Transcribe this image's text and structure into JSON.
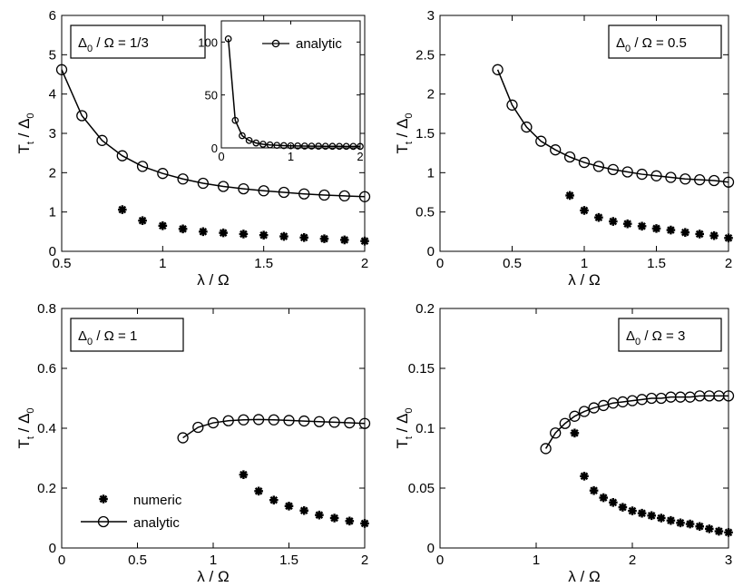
{
  "figure": {
    "xlabel": "λ / Ω",
    "ylabel_main": "T",
    "ylabel_sub_t": "t",
    "ylabel_mid": " / Δ",
    "ylabel_sub_0": "0"
  },
  "colors": {
    "line": "#000000",
    "background": "#ffffff"
  },
  "chart_data": [
    {
      "type": "line",
      "panel": "top-left",
      "label": {
        "delta": "Δ",
        "sub": "0",
        "rest": " / Ω = 1/3"
      },
      "xlim": [
        0.5,
        2
      ],
      "ylim": [
        0,
        6
      ],
      "xticks": [
        0.5,
        1,
        1.5,
        2
      ],
      "xtick_labels": [
        "0.5",
        "1",
        "1.5",
        "2"
      ],
      "yticks": [
        0,
        1,
        2,
        3,
        4,
        5,
        6
      ],
      "ytick_labels": [
        "0",
        "1",
        "2",
        "3",
        "4",
        "5",
        "6"
      ],
      "series": [
        {
          "name": "analytic",
          "marker": "circle",
          "line": true,
          "x": [
            0.5,
            0.6,
            0.7,
            0.8,
            0.9,
            1.0,
            1.1,
            1.2,
            1.3,
            1.4,
            1.5,
            1.6,
            1.7,
            1.8,
            1.9,
            2.0
          ],
          "y": [
            4.62,
            3.45,
            2.82,
            2.43,
            2.16,
            1.98,
            1.84,
            1.73,
            1.65,
            1.59,
            1.54,
            1.5,
            1.46,
            1.43,
            1.41,
            1.39
          ]
        },
        {
          "name": "numeric",
          "marker": "star",
          "line": false,
          "x": [
            0.8,
            0.9,
            1.0,
            1.1,
            1.2,
            1.3,
            1.4,
            1.5,
            1.6,
            1.7,
            1.8,
            1.9,
            2.0
          ],
          "y": [
            1.06,
            0.78,
            0.65,
            0.57,
            0.5,
            0.47,
            0.44,
            0.41,
            0.38,
            0.35,
            0.32,
            0.29,
            0.26
          ]
        }
      ],
      "inset": {
        "xlim": [
          0,
          2
        ],
        "ylim": [
          0,
          120
        ],
        "xticks": [
          0,
          1,
          2
        ],
        "xtick_labels": [
          "0",
          "1",
          "2"
        ],
        "yticks": [
          0,
          50,
          100
        ],
        "ytick_labels": [
          "0",
          "50",
          "100"
        ],
        "legend": "analytic",
        "series": [
          {
            "name": "analytic",
            "marker": "circle",
            "line": true,
            "x": [
              0.1,
              0.2,
              0.3,
              0.4,
              0.5,
              0.6,
              0.7,
              0.8,
              0.9,
              1.0,
              1.1,
              1.2,
              1.3,
              1.4,
              1.5,
              1.6,
              1.7,
              1.8,
              1.9,
              2.0
            ],
            "y": [
              103,
              26,
              11.5,
              7,
              4.62,
              3.45,
              2.82,
              2.43,
              2.16,
              1.98,
              1.84,
              1.73,
              1.65,
              1.59,
              1.54,
              1.5,
              1.46,
              1.43,
              1.41,
              1.39
            ]
          }
        ]
      }
    },
    {
      "type": "line",
      "panel": "top-right",
      "label": {
        "delta": "Δ",
        "sub": "0",
        "rest": " / Ω = 0.5"
      },
      "xlim": [
        0,
        2
      ],
      "ylim": [
        0,
        3
      ],
      "xticks": [
        0,
        0.5,
        1,
        1.5,
        2
      ],
      "xtick_labels": [
        "0",
        "0.5",
        "1",
        "1.5",
        "2"
      ],
      "yticks": [
        0,
        0.5,
        1,
        1.5,
        2,
        2.5,
        3
      ],
      "ytick_labels": [
        "0",
        "0.5",
        "1",
        "1.5",
        "2",
        "2.5",
        "3"
      ],
      "series": [
        {
          "name": "analytic",
          "marker": "circle",
          "line": true,
          "x": [
            0.4,
            0.5,
            0.6,
            0.7,
            0.8,
            0.9,
            1.0,
            1.1,
            1.2,
            1.3,
            1.4,
            1.5,
            1.6,
            1.7,
            1.8,
            1.9,
            2.0
          ],
          "y": [
            2.31,
            1.86,
            1.58,
            1.4,
            1.29,
            1.2,
            1.13,
            1.08,
            1.04,
            1.01,
            0.98,
            0.96,
            0.94,
            0.92,
            0.91,
            0.9,
            0.88
          ]
        },
        {
          "name": "numeric",
          "marker": "star",
          "line": false,
          "x": [
            0.9,
            1.0,
            1.1,
            1.2,
            1.3,
            1.4,
            1.5,
            1.6,
            1.7,
            1.8,
            1.9,
            2.0
          ],
          "y": [
            0.71,
            0.52,
            0.43,
            0.38,
            0.35,
            0.32,
            0.29,
            0.27,
            0.24,
            0.22,
            0.2,
            0.17
          ]
        }
      ]
    },
    {
      "type": "line",
      "panel": "bottom-left",
      "label": {
        "delta": "Δ",
        "sub": "0",
        "rest": " / Ω = 1"
      },
      "xlim": [
        0,
        2
      ],
      "ylim": [
        0,
        0.8
      ],
      "xticks": [
        0,
        0.5,
        1,
        1.5,
        2
      ],
      "xtick_labels": [
        "0",
        "0.5",
        "1",
        "1.5",
        "2"
      ],
      "yticks": [
        0,
        0.2,
        0.4,
        0.6,
        0.8
      ],
      "ytick_labels": [
        "0",
        "0.2",
        "0.4",
        "0.6",
        "0.8"
      ],
      "legend": {
        "items": [
          "numeric",
          "analytic"
        ],
        "placement": "bottom-left"
      },
      "series": [
        {
          "name": "analytic",
          "marker": "circle",
          "line": true,
          "x": [
            0.8,
            0.9,
            1.0,
            1.1,
            1.2,
            1.3,
            1.4,
            1.5,
            1.6,
            1.7,
            1.8,
            1.9,
            2.0
          ],
          "y": [
            0.368,
            0.403,
            0.418,
            0.425,
            0.428,
            0.429,
            0.428,
            0.426,
            0.424,
            0.422,
            0.42,
            0.418,
            0.416
          ]
        },
        {
          "name": "numeric",
          "marker": "star",
          "line": false,
          "x": [
            1.2,
            1.3,
            1.4,
            1.5,
            1.6,
            1.7,
            1.8,
            1.9,
            2.0
          ],
          "y": [
            0.245,
            0.19,
            0.16,
            0.14,
            0.125,
            0.11,
            0.1,
            0.09,
            0.082
          ]
        }
      ]
    },
    {
      "type": "line",
      "panel": "bottom-right",
      "label": {
        "delta": "Δ",
        "sub": "0",
        "rest": " / Ω = 3"
      },
      "xlim": [
        0,
        3
      ],
      "ylim": [
        0,
        0.2
      ],
      "xticks": [
        0,
        1,
        2,
        3
      ],
      "xtick_labels": [
        "0",
        "1",
        "2",
        "3"
      ],
      "yticks": [
        0,
        0.05,
        0.1,
        0.15,
        0.2
      ],
      "ytick_labels": [
        "0",
        "0.05",
        "0.1",
        "0.15",
        "0.2"
      ],
      "series": [
        {
          "name": "analytic",
          "marker": "circle",
          "line": true,
          "x": [
            1.1,
            1.2,
            1.3,
            1.4,
            1.5,
            1.6,
            1.7,
            1.8,
            1.9,
            2.0,
            2.1,
            2.2,
            2.3,
            2.4,
            2.5,
            2.6,
            2.7,
            2.8,
            2.9,
            3.0
          ],
          "y": [
            0.083,
            0.096,
            0.104,
            0.11,
            0.114,
            0.117,
            0.119,
            0.121,
            0.122,
            0.123,
            0.124,
            0.125,
            0.125,
            0.126,
            0.126,
            0.126,
            0.127,
            0.127,
            0.127,
            0.127
          ]
        },
        {
          "name": "numeric",
          "marker": "star",
          "line": false,
          "x": [
            1.4,
            1.5,
            1.6,
            1.7,
            1.8,
            1.9,
            2.0,
            2.1,
            2.2,
            2.3,
            2.4,
            2.5,
            2.6,
            2.7,
            2.8,
            2.9,
            3.0
          ],
          "y": [
            0.096,
            0.06,
            0.048,
            0.042,
            0.038,
            0.034,
            0.031,
            0.029,
            0.027,
            0.025,
            0.023,
            0.021,
            0.02,
            0.018,
            0.016,
            0.014,
            0.013
          ]
        }
      ]
    }
  ]
}
